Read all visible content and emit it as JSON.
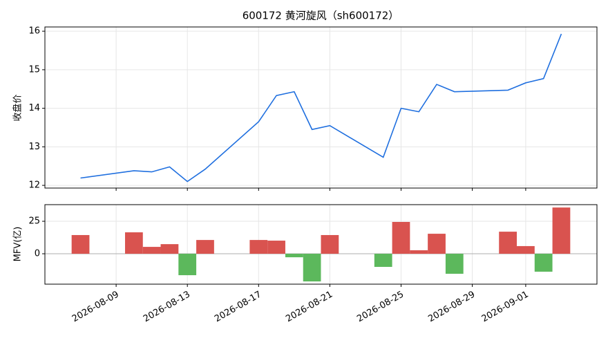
{
  "chart_data": [
    {
      "type": "line",
      "title": "600172 黄河旋风（sh600172）",
      "y_label": "收盘价",
      "x": [
        "2026-08-07",
        "2026-08-10",
        "2026-08-11",
        "2026-08-12",
        "2026-08-13",
        "2026-08-14",
        "2026-08-17",
        "2026-08-18",
        "2026-08-19",
        "2026-08-20",
        "2026-08-21",
        "2026-08-24",
        "2026-08-25",
        "2026-08-26",
        "2026-08-27",
        "2026-08-28",
        "2026-08-31",
        "2026-09-01",
        "2026-09-02",
        "2026-09-03"
      ],
      "series": [
        {
          "name": "收盘价",
          "color": "#1f6fdf",
          "values": [
            12.19,
            12.38,
            12.35,
            12.48,
            12.1,
            12.42,
            13.65,
            14.33,
            14.43,
            13.45,
            13.55,
            12.73,
            14.0,
            13.91,
            14.62,
            14.43,
            14.47,
            14.66,
            14.77,
            15.93
          ]
        }
      ],
      "xlim": [
        "2026-08-05",
        "2026-09-05"
      ],
      "ylim": [
        11.93,
        16.11
      ],
      "yticks": [
        12,
        13,
        14,
        15,
        16
      ],
      "grid": true
    },
    {
      "type": "bar",
      "y_label": "MFV(亿)",
      "x": [
        "2026-08-07",
        "2026-08-10",
        "2026-08-11",
        "2026-08-12",
        "2026-08-13",
        "2026-08-14",
        "2026-08-17",
        "2026-08-18",
        "2026-08-19",
        "2026-08-20",
        "2026-08-21",
        "2026-08-24",
        "2026-08-25",
        "2026-08-26",
        "2026-08-27",
        "2026-08-28",
        "2026-08-31",
        "2026-09-01",
        "2026-09-02",
        "2026-09-03"
      ],
      "values": [
        14.4,
        16.5,
        5.3,
        7.4,
        -16.5,
        10.6,
        10.6,
        10.1,
        -2.7,
        -21.3,
        14.4,
        -10.1,
        24.5,
        2.7,
        15.4,
        -15.4,
        17.0,
        5.9,
        -13.8,
        35.6
      ],
      "up_color": "#d9534f",
      "down_color": "#5cb85c",
      "xlim": [
        "2026-08-05",
        "2026-09-05"
      ],
      "ylim": [
        -23.4,
        37.8
      ],
      "yticks": [
        0,
        25
      ],
      "xticks": [
        "2026-08-09",
        "2026-08-13",
        "2026-08-17",
        "2026-08-21",
        "2026-08-25",
        "2026-08-29",
        "2026-09-01"
      ],
      "grid": true
    }
  ]
}
